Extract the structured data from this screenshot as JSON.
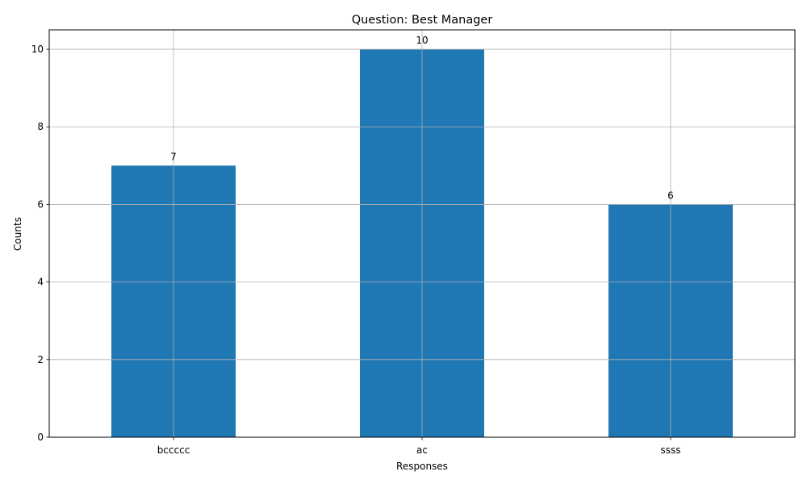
{
  "chart_data": {
    "type": "bar",
    "title": "Question: Best Manager",
    "xlabel": "Responses",
    "ylabel": "Counts",
    "categories": [
      "bccccc",
      "ac",
      "ssss"
    ],
    "values": [
      7,
      10,
      6
    ],
    "data_labels": [
      "7",
      "10",
      "6"
    ],
    "ylim": [
      0,
      10.5
    ],
    "yticks": [
      0,
      2,
      4,
      6,
      8,
      10
    ],
    "ytick_labels": [
      "0",
      "2",
      "4",
      "6",
      "8",
      "10"
    ],
    "grid": true,
    "bar_color": "#1f77b4",
    "grid_color": "#b0b0b0"
  }
}
